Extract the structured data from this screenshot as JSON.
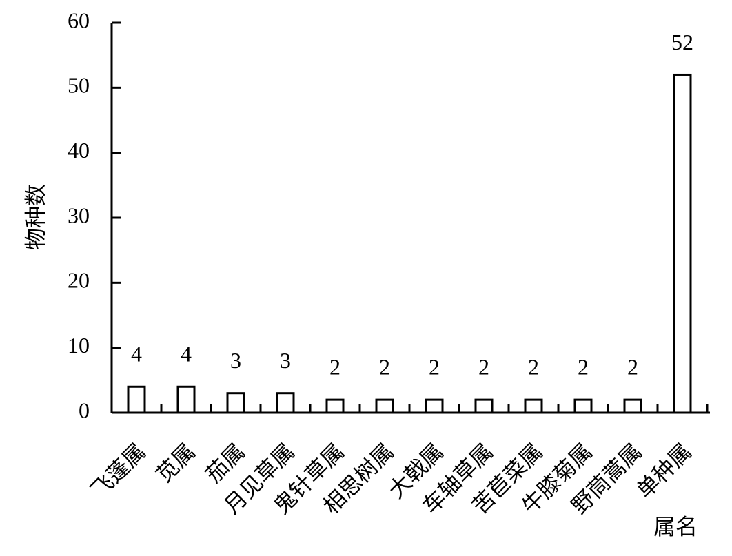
{
  "chart_data": {
    "type": "bar",
    "x_label": "属名",
    "y_label": "物种数",
    "categories": [
      "飞蓬属",
      "苋属",
      "茄属",
      "月见草属",
      "鬼针草属",
      "相思树属",
      "大戟属",
      "车轴草属",
      "苦苣菜属",
      "牛膝菊属",
      "野茼蒿属",
      "单种属"
    ],
    "values": [
      4,
      4,
      3,
      3,
      2,
      2,
      2,
      2,
      2,
      2,
      2,
      52
    ],
    "color": "#ffffff",
    "ylim": [
      0,
      60
    ],
    "yticks": [
      0,
      10,
      20,
      30,
      40,
      50,
      60
    ],
    "grid": false
  }
}
